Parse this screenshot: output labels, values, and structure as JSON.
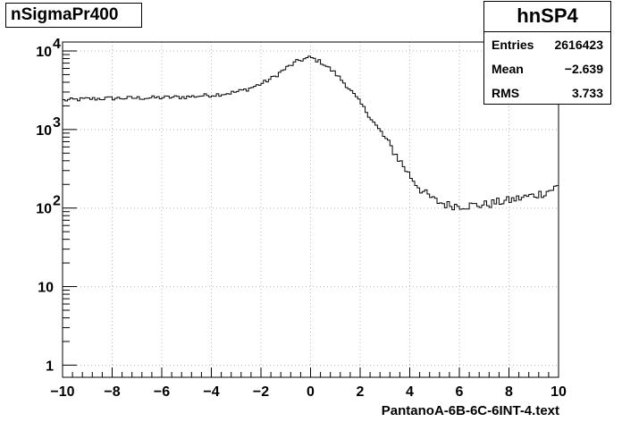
{
  "chart_data": {
    "type": "histogram",
    "title": "nSigmaPr400",
    "xlabel": "PantanoA-6B-6C-6INT-4.text",
    "ylabel": "",
    "xlim": [
      -10,
      10
    ],
    "ylim": [
      0.7,
      13000
    ],
    "log_y": true,
    "grid": true,
    "x_ticks": [
      "−10",
      "−8",
      "−6",
      "−4",
      "−2",
      "0",
      "2",
      "4",
      "6",
      "8",
      "10"
    ],
    "y_ticks": [
      "1",
      "10",
      "10^2",
      "10^3",
      "10^4"
    ],
    "bin_width": 0.1,
    "profile": [
      [
        -10,
        2350
      ],
      [
        -9,
        2450
      ],
      [
        -8,
        2500
      ],
      [
        -7,
        2520
      ],
      [
        -6,
        2550
      ],
      [
        -5,
        2600
      ],
      [
        -4,
        2750
      ],
      [
        -3.5,
        2850
      ],
      [
        -3,
        3000
      ],
      [
        -2.5,
        3300
      ],
      [
        -2,
        3800
      ],
      [
        -1.5,
        4600
      ],
      [
        -1,
        6000
      ],
      [
        -0.5,
        7500
      ],
      [
        0,
        8300
      ],
      [
        0.5,
        7000
      ],
      [
        1,
        5200
      ],
      [
        1.5,
        3500
      ],
      [
        2,
        2200
      ],
      [
        2.5,
        1300
      ],
      [
        3,
        780
      ],
      [
        3.5,
        450
      ],
      [
        4,
        260
      ],
      [
        4.5,
        165
      ],
      [
        5,
        125
      ],
      [
        5.5,
        110
      ],
      [
        6,
        108
      ],
      [
        6.5,
        108
      ],
      [
        7,
        110
      ],
      [
        7.5,
        118
      ],
      [
        8,
        125
      ],
      [
        8.5,
        135
      ],
      [
        9,
        145
      ],
      [
        9.5,
        160
      ],
      [
        10,
        190
      ]
    ]
  },
  "stats": {
    "name": "hnSP4",
    "rows": [
      {
        "label": "Entries",
        "value": "2616423"
      },
      {
        "label": "Mean",
        "value": "−2.639"
      },
      {
        "label": "RMS",
        "value": "3.733"
      }
    ]
  }
}
